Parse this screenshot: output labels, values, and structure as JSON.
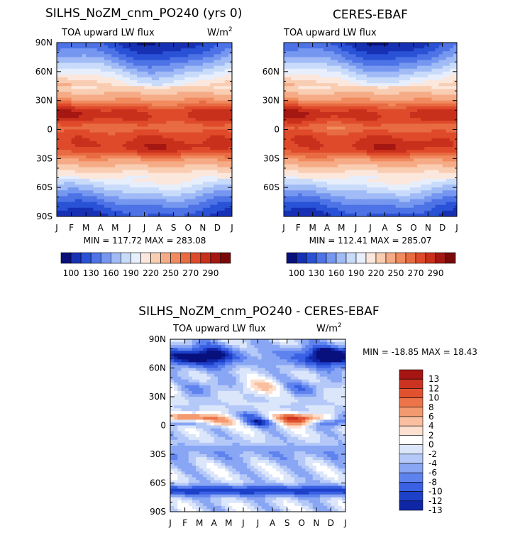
{
  "colors": {
    "abs_scale": [
      "#08107e",
      "#1731b4",
      "#2a52d6",
      "#4d73e6",
      "#7697ef",
      "#a0bbf6",
      "#c9dbfa",
      "#e7eefc",
      "#fbe7dc",
      "#f9cdb2",
      "#f5ab86",
      "#f18b5f",
      "#e86b42",
      "#de4a2a",
      "#c9301c",
      "#a51712",
      "#7a0a0a"
    ],
    "diff_scale": [
      "#08107e",
      "#0f27a6",
      "#1d40c9",
      "#3a61e3",
      "#5f83ee",
      "#89a6f4",
      "#b5c9f8",
      "#dbe6fb",
      "#ffffff",
      "#fde0cf",
      "#f9bf9f",
      "#f49a70",
      "#ec7448",
      "#e0512f",
      "#cb321f",
      "#a71513",
      "#7a0a0a"
    ]
  },
  "chart_data": [
    {
      "type": "heatmap",
      "panel": "model",
      "title": "SILHS_NoZM_cnm_PO240 (yrs 0)",
      "subtitle": "TOA upward LW flux",
      "units_base": "W/m",
      "units_exp": "2",
      "x_ticklabels": [
        "J",
        "F",
        "M",
        "A",
        "M",
        "J",
        "J",
        "A",
        "S",
        "O",
        "N",
        "D",
        "J"
      ],
      "y_ticklabels": [
        "90N",
        "60N",
        "30N",
        "0",
        "30S",
        "60S",
        "90S"
      ],
      "ylim": [
        -90,
        90
      ],
      "stats": "MIN = 117.72  MAX = 283.08",
      "colorbar_labels": [
        "100",
        "130",
        "160",
        "190",
        "220",
        "250",
        "270",
        "290"
      ],
      "levels": [
        100,
        115,
        130,
        145,
        160,
        175,
        190,
        205,
        220,
        235,
        250,
        260,
        270,
        280,
        290,
        300
      ]
    },
    {
      "type": "heatmap",
      "panel": "observations",
      "title": "CERES-EBAF",
      "subtitle": "TOA upward LW flux",
      "x_ticklabels": [
        "J",
        "F",
        "M",
        "A",
        "M",
        "J",
        "J",
        "A",
        "S",
        "O",
        "N",
        "D",
        "J"
      ],
      "y_ticklabels": [
        "60N",
        "30N",
        "0",
        "30S",
        "60S"
      ],
      "ylim": [
        -90,
        90
      ],
      "stats": "MIN = 112.41  MAX = 285.07",
      "colorbar_labels": [
        "100",
        "130",
        "160",
        "190",
        "220",
        "250",
        "270",
        "290"
      ],
      "levels": [
        100,
        115,
        130,
        145,
        160,
        175,
        190,
        205,
        220,
        235,
        250,
        260,
        270,
        280,
        290,
        300
      ]
    },
    {
      "type": "heatmap",
      "panel": "difference",
      "title": "SILHS_NoZM_cnm_PO240 - CERES-EBAF",
      "subtitle": "TOA upward LW flux",
      "units_base": "W/m",
      "units_exp": "2",
      "x_ticklabels": [
        "J",
        "F",
        "M",
        "A",
        "M",
        "J",
        "J",
        "A",
        "S",
        "O",
        "N",
        "D",
        "J"
      ],
      "y_ticklabels": [
        "90N",
        "60N",
        "30N",
        "0",
        "30S",
        "60S",
        "90S"
      ],
      "ylim": [
        -90,
        90
      ],
      "stats": "MIN = -18.85  MAX =  18.43",
      "colorbar_labels": [
        "13",
        "12",
        "10",
        "8",
        "6",
        "4",
        "2",
        "0",
        "-2",
        "-4",
        "-6",
        "-8",
        "-10",
        "-12",
        "-13"
      ],
      "levels": [
        -14,
        -13,
        -12,
        -10,
        -8,
        -6,
        -4,
        -2,
        0,
        2,
        4,
        6,
        8,
        10,
        12,
        13,
        14
      ]
    }
  ]
}
